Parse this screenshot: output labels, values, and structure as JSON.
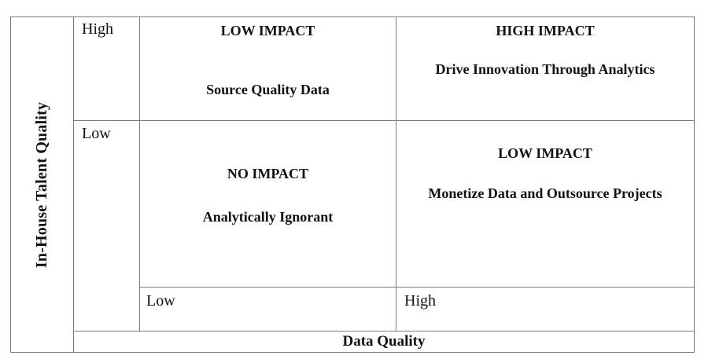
{
  "colors": {
    "border": "#7a7a7a",
    "text": "#111111",
    "background": "#ffffff"
  },
  "y_axis": {
    "title": "In-House Talent Quality",
    "high_label": "High",
    "low_label": "Low"
  },
  "x_axis": {
    "title": "Data Quality",
    "low_label": "Low",
    "high_label": "High"
  },
  "quadrants": {
    "top_left": {
      "impact": "LOW IMPACT",
      "strategy": "Source Quality Data"
    },
    "top_right": {
      "impact": "HIGH IMPACT",
      "strategy": "Drive Innovation Through Analytics"
    },
    "bottom_left": {
      "impact": "NO IMPACT",
      "strategy": "Analytically Ignorant"
    },
    "bottom_right": {
      "impact": "LOW IMPACT",
      "strategy": "Monetize Data and Outsource Projects"
    }
  }
}
